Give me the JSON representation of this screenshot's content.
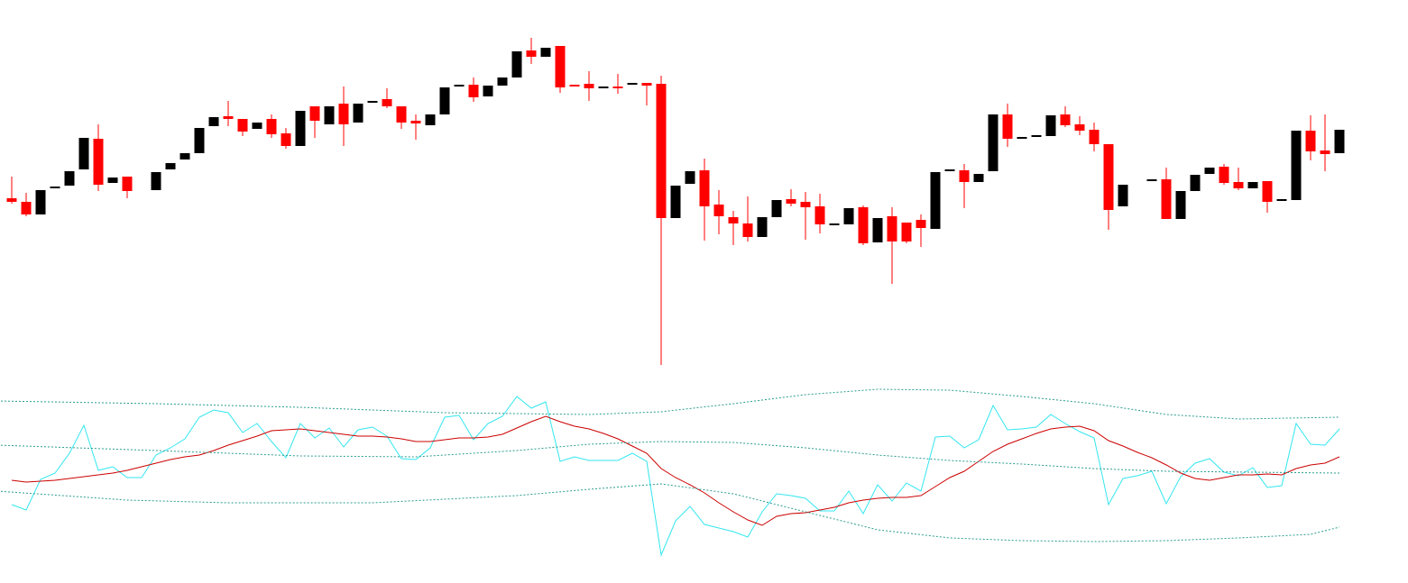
{
  "chart_data": [
    {
      "type": "candlestick",
      "up_color": "#000000",
      "down_color": "#ff0000",
      "ylim": [
        80,
        500
      ],
      "xlim": [
        -1,
        92
      ],
      "open": [
        280,
        276,
        262,
        291,
        294,
        312,
        346,
        297,
        304,
        null,
        289,
        312,
        323,
        330,
        360,
        371,
        368,
        357,
        368,
        352,
        338,
        382,
        362,
        385,
        364,
        386,
        390,
        382,
        366,
        361,
        373,
        404,
        406,
        393,
        405,
        414,
        444,
        437,
        449,
        406,
        407,
        402,
        404,
        406,
        408,
        407,
        258,
        296,
        311,
        273,
        259,
        252,
        237,
        259,
        279,
        276,
        271,
        250,
        251,
        270,
        231,
        260,
        253,
        256,
        246,
        310,
        311,
        298,
        310,
        373,
        346,
        348,
        349,
        373,
        362,
        356,
        340,
        271,
        null,
        299,
        301,
        257,
        288,
        307,
        315,
        298,
        291,
        299,
        277,
        278,
        355,
        333,
        330
      ],
      "high": [
        304,
        286,
        289,
        293,
        310,
        347,
        362,
        303,
        304,
        null,
        309,
        319,
        330,
        358,
        370,
        388,
        368,
        364,
        373,
        358,
        377,
        382,
        382,
        404,
        385,
        388,
        402,
        382,
        373,
        373,
        403,
        406,
        414,
        405,
        414,
        443,
        458,
        447,
        449,
        406,
        421,
        404,
        418,
        408,
        408,
        416,
        294,
        310,
        324,
        289,
        266,
        282,
        259,
        278,
        290,
        287,
        285,
        252,
        269,
        272,
        258,
        270,
        253,
        262,
        309,
        312,
        318,
        307,
        373,
        385,
        348,
        350,
        372,
        382,
        371,
        364,
        340,
        295,
        null,
        301,
        314,
        288,
        306,
        314,
        318,
        314,
        298,
        299,
        279,
        355,
        372,
        373,
        356
      ],
      "low": [
        274,
        260,
        262,
        291,
        294,
        312,
        288,
        297,
        280,
        null,
        289,
        312,
        323,
        330,
        360,
        360,
        349,
        357,
        347,
        335,
        338,
        347,
        362,
        338,
        364,
        386,
        380,
        357,
        345,
        361,
        373,
        404,
        387,
        393,
        405,
        414,
        429,
        437,
        397,
        404,
        388,
        402,
        396,
        406,
        383,
        95,
        258,
        296,
        233,
        240,
        228,
        232,
        237,
        259,
        271,
        234,
        241,
        250,
        251,
        228,
        231,
        185,
        230,
        226,
        246,
        310,
        269,
        298,
        310,
        337,
        346,
        348,
        349,
        359,
        350,
        332,
        245,
        271,
        null,
        299,
        257,
        257,
        288,
        307,
        295,
        289,
        291,
        264,
        277,
        278,
        322,
        310,
        330
      ],
      "close": [
        276,
        262,
        289,
        293,
        310,
        347,
        295,
        303,
        288,
        null,
        309,
        319,
        330,
        358,
        370,
        368,
        354,
        364,
        351,
        338,
        377,
        366,
        382,
        362,
        385,
        388,
        382,
        364,
        363,
        373,
        403,
        406,
        392,
        405,
        414,
        443,
        437,
        447,
        403,
        404,
        402,
        404,
        402,
        408,
        405,
        258,
        294,
        310,
        271,
        260,
        252,
        237,
        259,
        278,
        274,
        270,
        251,
        252,
        269,
        230,
        258,
        232,
        232,
        247,
        309,
        312,
        298,
        307,
        373,
        346,
        348,
        350,
        372,
        361,
        355,
        340,
        267,
        295,
        null,
        301,
        257,
        288,
        306,
        314,
        297,
        291,
        298,
        276,
        279,
        355,
        332,
        329,
        356
      ]
    },
    {
      "type": "line",
      "ylim": [
        3,
        233
      ],
      "xlim": [
        -1,
        92
      ],
      "series": [
        {
          "color": "#33e6f0",
          "values": [
            90,
            84,
            118,
            125,
            147,
            178,
            128,
            132,
            120,
            120,
            145,
            153,
            163,
            187,
            195,
            192,
            170,
            180,
            160,
            142,
            180,
            164,
            175,
            154,
            173,
            176,
            166,
            141,
            140,
            153,
            187,
            189,
            162,
            180,
            188,
            210,
            197,
            204,
            138,
            143,
            139,
            139,
            139,
            147,
            138,
            34,
            72,
            88,
            68,
            64,
            60,
            54,
            82,
            102,
            100,
            97,
            83,
            83,
            105,
            80,
            112,
            94,
            114,
            105,
            165,
            166,
            153,
            162,
            200,
            173,
            174,
            176,
            190,
            180,
            171,
            164,
            90,
            119,
            122,
            127,
            91,
            121,
            136,
            141,
            126,
            122,
            131,
            109,
            111,
            180,
            157,
            156,
            174
          ]
        },
        {
          "color": "#cc0000",
          "values": [
            117,
            115,
            116,
            117,
            119,
            121,
            123,
            125,
            128,
            132,
            136,
            140,
            143,
            145,
            150,
            156,
            161,
            166,
            172,
            173,
            174,
            172,
            170,
            168,
            166,
            166,
            165,
            163,
            160,
            160,
            162,
            164,
            164,
            165,
            168,
            175,
            182,
            188,
            182,
            177,
            174,
            169,
            163,
            155,
            147,
            130,
            120,
            112,
            103,
            92,
            82,
            73,
            67,
            77,
            80,
            81,
            84,
            87,
            92,
            95,
            97,
            98,
            98,
            100,
            110,
            120,
            127,
            138,
            149,
            157,
            163,
            169,
            174,
            176,
            177,
            172,
            161,
            155,
            148,
            142,
            134,
            125,
            119,
            117,
            120,
            123,
            123,
            124,
            123,
            130,
            134,
            136,
            143
          ]
        },
        {
          "color": "#2a9d8f",
          "dotted": true,
          "x": [
            -1,
            10,
            20,
            30,
            40,
            45,
            50,
            55,
            60,
            65,
            70,
            75,
            80,
            85,
            92
          ],
          "values": [
            205,
            202,
            198,
            192,
            190,
            193,
            202,
            212,
            218,
            217,
            210,
            202,
            190,
            185,
            187
          ]
        },
        {
          "color": "#2a9d8f",
          "dotted": true,
          "x": [
            -1,
            10,
            20,
            28,
            35,
            40,
            45,
            50,
            55,
            60,
            65,
            70,
            75,
            80,
            86,
            92
          ],
          "values": [
            156,
            150,
            144,
            143,
            150,
            157,
            160,
            159,
            153,
            145,
            139,
            135,
            130,
            127,
            126,
            125
          ]
        },
        {
          "color": "#2a9d8f",
          "dotted": true,
          "x": [
            -1,
            8,
            15,
            25,
            35,
            40,
            45,
            50,
            55,
            60,
            65,
            70,
            75,
            80,
            85,
            90,
            92
          ],
          "values": [
            105,
            95,
            92,
            92,
            100,
            107,
            113,
            102,
            82,
            62,
            53,
            50,
            49,
            50,
            53,
            57,
            65
          ]
        }
      ]
    }
  ]
}
